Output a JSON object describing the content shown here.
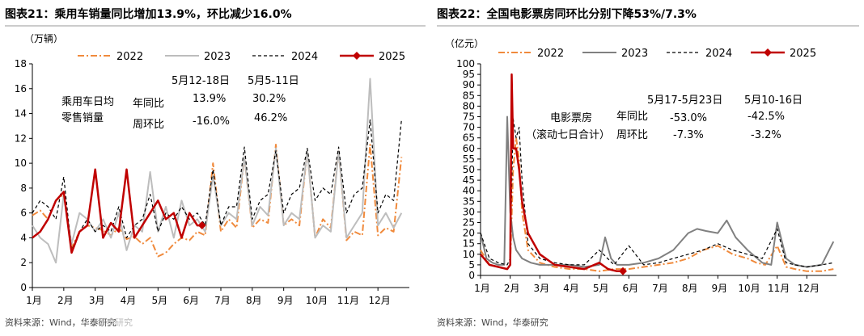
{
  "chart_data": [
    {
      "type": "line",
      "title": "图表21：乘用车销量同比增加13.9%，环比减少16.0%",
      "unit": "（万辆）",
      "source": "资料来源：Wind，华泰研究",
      "ylim": [
        0,
        18
      ],
      "yticks": [
        0,
        2,
        4,
        6,
        8,
        10,
        12,
        14,
        16,
        18
      ],
      "xticks": [
        "1月",
        "2月",
        "3月",
        "4月",
        "5月",
        "6月",
        "7月",
        "8月",
        "9月",
        "10月",
        "11月",
        "12月"
      ],
      "legend": [
        "2022",
        "2023",
        "2024",
        "2025"
      ],
      "annotations": {
        "label1": "乘用车日均",
        "label2": "零售销量",
        "col1_header": "5月12-18日",
        "col2_header": "5月5-11日",
        "row1_label": "年同比",
        "row2_label": "周环比",
        "r1c1": "13.9%",
        "r1c2": "30.2%",
        "r2c1": "-16.0%",
        "r2c2": "46.2%"
      },
      "series": [
        {
          "name": "2022",
          "x": [
            0,
            0.25,
            0.5,
            0.75,
            1,
            1.25,
            1.5,
            1.75,
            2,
            2.25,
            2.5,
            2.75,
            3,
            3.25,
            3.5,
            3.75,
            4,
            4.25,
            4.5,
            4.75,
            5,
            5.25,
            5.5,
            5.75,
            6,
            6.25,
            6.5,
            6.75,
            7,
            7.25,
            7.5,
            7.75,
            8,
            8.25,
            8.5,
            8.75,
            9,
            9.25,
            9.5,
            9.75,
            10,
            10.25,
            10.5,
            10.75,
            11,
            11.25,
            11.5,
            11.75
          ],
          "values": [
            5.8,
            6.2,
            5.5,
            7.0,
            7.5,
            3.2,
            4.5,
            5.0,
            4.8,
            4.6,
            4.2,
            4.8,
            3.9,
            4.1,
            3.5,
            4.0,
            2.5,
            2.8,
            3.5,
            4.0,
            3.8,
            4.5,
            4.2,
            10.0,
            4.5,
            5.5,
            4.8,
            10.5,
            4.8,
            5.5,
            5.2,
            11.5,
            5.0,
            5.5,
            5.0,
            11.0,
            4.0,
            5.5,
            4.8,
            11.0,
            3.8,
            4.5,
            4.2,
            11.5,
            4.2,
            4.8,
            4.5,
            10.5
          ]
        },
        {
          "name": "2023",
          "x": [
            0,
            0.25,
            0.5,
            0.75,
            1,
            1.25,
            1.5,
            1.75,
            2,
            2.25,
            2.5,
            2.75,
            3,
            3.25,
            3.5,
            3.75,
            4,
            4.25,
            4.5,
            4.75,
            5,
            5.25,
            5.5,
            5.75,
            6,
            6.25,
            6.5,
            6.75,
            7,
            7.25,
            7.5,
            7.75,
            8,
            8.25,
            8.5,
            8.75,
            9,
            9.25,
            9.5,
            9.75,
            10,
            10.25,
            10.5,
            10.75,
            11,
            11.25,
            11.5,
            11.75
          ],
          "values": [
            5.0,
            4.0,
            3.5,
            2.0,
            7.5,
            3.5,
            6.0,
            5.5,
            4.5,
            5.5,
            4.0,
            6.0,
            3.0,
            5.0,
            4.5,
            9.3,
            4.5,
            6.5,
            4.0,
            7.0,
            5.0,
            5.5,
            4.5,
            9.0,
            5.0,
            6.0,
            5.5,
            10.5,
            5.0,
            6.5,
            5.8,
            11.2,
            5.0,
            6.0,
            5.5,
            11.0,
            4.0,
            5.0,
            4.5,
            11.0,
            4.0,
            5.0,
            6.0,
            16.8,
            5.0,
            6.0,
            4.8,
            6.0
          ]
        },
        {
          "name": "2024",
          "x": [
            0,
            0.25,
            0.5,
            0.75,
            1,
            1.25,
            1.5,
            1.75,
            2,
            2.25,
            2.5,
            2.75,
            3,
            3.25,
            3.5,
            3.75,
            4,
            4.25,
            4.5,
            4.75,
            5,
            5.25,
            5.5,
            5.75,
            6,
            6.25,
            6.5,
            6.75,
            7,
            7.25,
            7.5,
            7.75,
            8,
            8.25,
            8.5,
            8.75,
            9,
            9.25,
            9.5,
            9.75,
            10,
            10.25,
            10.5,
            10.75,
            11,
            11.25,
            11.5,
            11.75
          ],
          "values": [
            6.0,
            7.0,
            6.5,
            5.5,
            8.9,
            3.0,
            4.5,
            5.5,
            4.5,
            5.0,
            4.5,
            6.5,
            4.0,
            5.0,
            5.5,
            7.5,
            4.5,
            6.0,
            5.5,
            6.5,
            5.5,
            6.0,
            5.0,
            9.5,
            5.0,
            6.5,
            6.5,
            11.3,
            5.5,
            7.0,
            7.5,
            11.0,
            6.0,
            7.5,
            8.0,
            11.2,
            7.0,
            8.0,
            7.5,
            11.3,
            6.0,
            7.5,
            8.0,
            13.5,
            6.0,
            7.5,
            7.0,
            13.5
          ]
        },
        {
          "name": "2025",
          "x": [
            0,
            0.25,
            0.5,
            0.75,
            1,
            1.25,
            1.5,
            1.75,
            2,
            2.25,
            2.5,
            2.75,
            3,
            3.25,
            3.5,
            3.75,
            4,
            4.25,
            4.5,
            4.75,
            5,
            5.25,
            5.4
          ],
          "values": [
            4.0,
            4.5,
            5.5,
            7.0,
            7.7,
            2.8,
            4.5,
            5.0,
            9.5,
            4.0,
            5.2,
            4.5,
            9.5,
            4.0,
            5.0,
            6.0,
            7.0,
            5.5,
            6.0,
            4.0,
            6.0,
            5.0,
            5.0
          ]
        }
      ]
    },
    {
      "type": "line",
      "title": "图表22：全国电影票房同环比分别下降53%/7.3%",
      "unit": "（亿元）",
      "source": "资料来源：Wind，华泰研究",
      "ylim": [
        0,
        100
      ],
      "yticks": [
        0,
        5,
        10,
        15,
        20,
        25,
        30,
        35,
        40,
        45,
        50,
        55,
        60,
        65,
        70,
        75,
        80,
        85,
        90,
        95,
        100
      ],
      "xticks": [
        "1月",
        "2月",
        "3月",
        "4月",
        "5月",
        "6月",
        "7月",
        "8月",
        "9月",
        "10月",
        "11月",
        "12月"
      ],
      "legend": [
        "2022",
        "2023",
        "2024",
        "2025"
      ],
      "annotations": {
        "label1": "电影票房",
        "label2": "（滚动七日合计）",
        "col1_header": "5月17-5月23日",
        "col2_header": "5月10-16日",
        "row1_label": "年同比",
        "row2_label": "周环比",
        "r1c1": "-53.0%",
        "r1c2": "-42.5%",
        "r2c1": "-7.3%",
        "r2c2": "-3.2%"
      },
      "series": [
        {
          "name": "2022",
          "x": [
            0,
            0.3,
            0.6,
            0.9,
            1.0,
            1.1,
            1.2,
            1.3,
            1.4,
            1.6,
            2.0,
            2.5,
            3.0,
            3.5,
            4.0,
            4.5,
            5.0,
            5.5,
            6.0,
            6.5,
            7.0,
            7.5,
            8.0,
            8.5,
            9.0,
            9.3,
            9.6,
            10.0,
            10.3,
            10.6,
            11.0,
            11.5,
            11.9
          ],
          "values": [
            12,
            5,
            4,
            3,
            5,
            50,
            65,
            55,
            30,
            12,
            6,
            4,
            3,
            3,
            2,
            3,
            3,
            4,
            5,
            6,
            8,
            12,
            14,
            10,
            8,
            6,
            5,
            14,
            4,
            3,
            2,
            2,
            3
          ]
        },
        {
          "name": "2023",
          "x": [
            0,
            0.2,
            0.4,
            0.6,
            0.8,
            0.9,
            1.0,
            1.1,
            1.2,
            1.4,
            1.7,
            2.0,
            2.5,
            3.0,
            3.5,
            4.0,
            4.2,
            4.4,
            4.6,
            5.0,
            5.5,
            6.0,
            6.5,
            7.0,
            7.3,
            7.6,
            8.0,
            8.3,
            8.6,
            9.0,
            9.5,
            9.8,
            10.0,
            10.3,
            10.6,
            11.0,
            11.5,
            11.9
          ],
          "values": [
            20,
            8,
            6,
            5,
            5,
            75,
            30,
            18,
            12,
            8,
            6,
            5,
            5,
            5,
            4,
            5,
            18,
            8,
            5,
            5,
            6,
            8,
            12,
            20,
            22,
            21,
            20,
            26,
            18,
            12,
            6,
            5,
            25,
            8,
            5,
            4,
            5,
            16
          ]
        },
        {
          "name": "2024",
          "x": [
            0,
            0.3,
            0.6,
            0.9,
            1.0,
            1.1,
            1.2,
            1.3,
            1.4,
            1.6,
            2.0,
            2.5,
            3.0,
            3.5,
            4.0,
            4.5,
            5.0,
            5.5,
            6.0,
            6.5,
            7.0,
            7.5,
            8.0,
            8.5,
            9.0,
            9.5,
            10.0,
            10.3,
            10.6,
            11.0,
            11.5,
            11.9
          ],
          "values": [
            20,
            8,
            6,
            5,
            8,
            74,
            65,
            70,
            45,
            15,
            8,
            6,
            5,
            5,
            12,
            5,
            14,
            5,
            6,
            8,
            10,
            12,
            15,
            12,
            10,
            8,
            22,
            6,
            5,
            4,
            5,
            6
          ]
        },
        {
          "name": "2025",
          "x": [
            0,
            0.3,
            0.6,
            0.9,
            1.0,
            1.05,
            1.1,
            1.2,
            1.3,
            1.4,
            1.6,
            2.0,
            2.5,
            3.0,
            3.5,
            4.0,
            4.3,
            4.6,
            4.8
          ],
          "values": [
            10,
            5,
            4,
            3,
            5,
            95,
            60,
            60,
            50,
            35,
            20,
            10,
            5,
            4,
            3,
            6,
            3,
            2,
            2
          ]
        }
      ]
    }
  ],
  "watermark": "华泰研究"
}
